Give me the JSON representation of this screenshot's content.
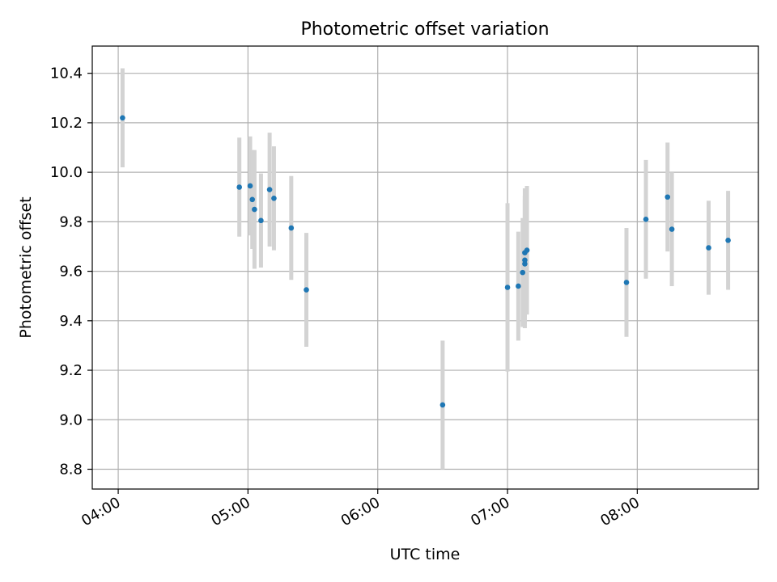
{
  "chart_data": {
    "type": "scatter",
    "title": "Photometric offset variation",
    "xlabel": "UTC time",
    "ylabel": "Photometric offset",
    "x_tick_labels": [
      "04:00",
      "05:00",
      "06:00",
      "07:00",
      "08:00"
    ],
    "x_tick_values": [
      "04:00",
      "05:00",
      "06:00",
      "07:00",
      "08:00"
    ],
    "y_ticks": [
      8.8,
      9.0,
      9.2,
      9.4,
      9.6,
      9.8,
      10.0,
      10.2,
      10.4
    ],
    "xlim": [
      "03:48",
      "08:56"
    ],
    "ylim": [
      8.72,
      10.51
    ],
    "grid": true,
    "point_color": "#1f77b4",
    "errorbar_color": "#d3d3d3",
    "series": [
      {
        "points": [
          {
            "x": "04:02",
            "y": 10.22,
            "err": 0.2
          },
          {
            "x": "04:56",
            "y": 9.94,
            "err": 0.2
          },
          {
            "x": "05:01",
            "y": 9.945,
            "err": 0.2
          },
          {
            "x": "05:02",
            "y": 9.89,
            "err": 0.2
          },
          {
            "x": "05:03",
            "y": 9.85,
            "err": 0.24
          },
          {
            "x": "05:06",
            "y": 9.805,
            "err": 0.19
          },
          {
            "x": "05:10",
            "y": 9.93,
            "err": 0.23
          },
          {
            "x": "05:12",
            "y": 9.895,
            "err": 0.21
          },
          {
            "x": "05:20",
            "y": 9.775,
            "err": 0.21
          },
          {
            "x": "05:27",
            "y": 9.525,
            "err": 0.23
          },
          {
            "x": "06:30",
            "y": 9.06,
            "err": 0.26
          },
          {
            "x": "07:00",
            "y": 9.535,
            "err": 0.34
          },
          {
            "x": "07:05",
            "y": 9.54,
            "err": 0.22
          },
          {
            "x": "07:07",
            "y": 9.595,
            "err": 0.22
          },
          {
            "x": "07:08",
            "y": 9.63,
            "err": 0.26
          },
          {
            "x": "07:08",
            "y": 9.645,
            "err": 0.26
          },
          {
            "x": "07:08",
            "y": 9.675,
            "err": 0.26
          },
          {
            "x": "07:09",
            "y": 9.685,
            "err": 0.26
          },
          {
            "x": "07:55",
            "y": 9.555,
            "err": 0.22
          },
          {
            "x": "08:04",
            "y": 9.81,
            "err": 0.24
          },
          {
            "x": "08:14",
            "y": 9.9,
            "err": 0.22
          },
          {
            "x": "08:16",
            "y": 9.77,
            "err": 0.23
          },
          {
            "x": "08:33",
            "y": 9.695,
            "err": 0.19
          },
          {
            "x": "08:42",
            "y": 9.725,
            "err": 0.2
          }
        ]
      }
    ]
  }
}
